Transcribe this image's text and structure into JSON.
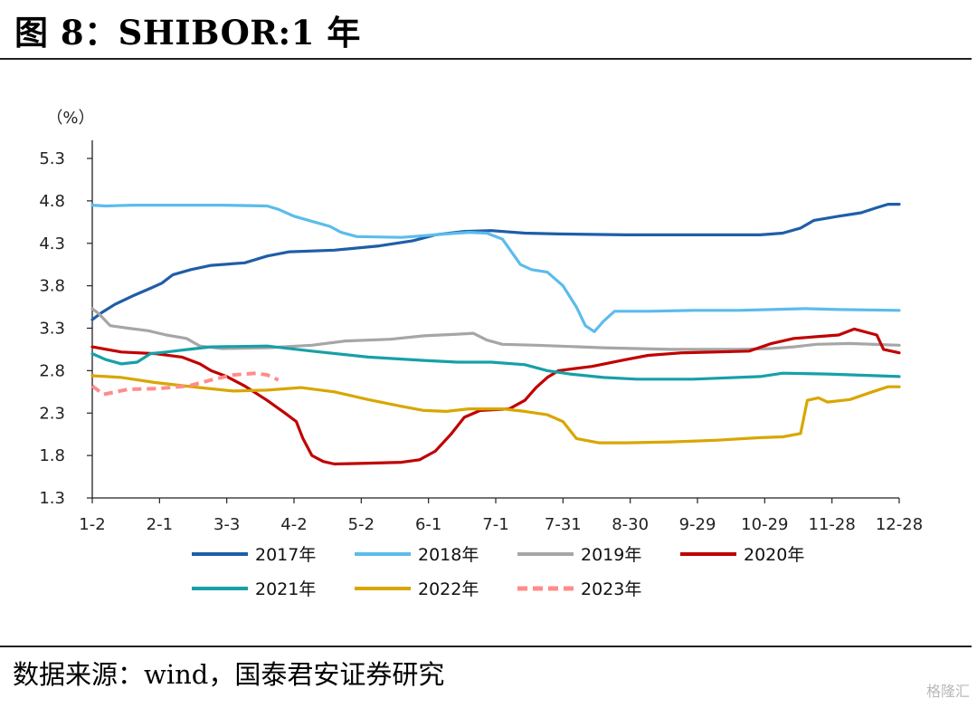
{
  "title": "图  8：SHIBOR:1 年",
  "source": "数据来源：wind，国泰君安证券研究",
  "watermark": "格隆汇",
  "chart_data": {
    "type": "line",
    "unit": "（%）",
    "ylim": [
      1.3,
      5.3
    ],
    "y_ticks": [
      "5.3",
      "4.8",
      "4.3",
      "3.8",
      "3.3",
      "2.8",
      "2.3",
      "1.8",
      "1.3"
    ],
    "x_ticks": [
      "1-2",
      "2-1",
      "3-3",
      "4-2",
      "5-2",
      "6-1",
      "7-1",
      "7-31",
      "8-30",
      "9-29",
      "10-29",
      "11-28",
      "12-28"
    ],
    "x_tick_days": [
      2,
      32,
      62,
      92,
      122,
      152,
      182,
      212,
      242,
      272,
      302,
      332,
      362
    ],
    "xlim": [
      2,
      362
    ],
    "legend": {
      "placement": "bottom",
      "columns": 4
    },
    "series": [
      {
        "name": "2017年",
        "color": "#1f5ea8",
        "dashed": false,
        "points": [
          [
            2,
            3.4
          ],
          [
            6,
            3.48
          ],
          [
            12,
            3.58
          ],
          [
            20,
            3.68
          ],
          [
            28,
            3.77
          ],
          [
            33,
            3.83
          ],
          [
            38,
            3.93
          ],
          [
            46,
            3.99
          ],
          [
            55,
            4.04
          ],
          [
            70,
            4.07
          ],
          [
            80,
            4.15
          ],
          [
            90,
            4.2
          ],
          [
            110,
            4.22
          ],
          [
            130,
            4.27
          ],
          [
            145,
            4.33
          ],
          [
            155,
            4.4
          ],
          [
            168,
            4.44
          ],
          [
            180,
            4.45
          ],
          [
            195,
            4.42
          ],
          [
            210,
            4.41
          ],
          [
            240,
            4.4
          ],
          [
            270,
            4.4
          ],
          [
            300,
            4.4
          ],
          [
            310,
            4.42
          ],
          [
            318,
            4.48
          ],
          [
            324,
            4.57
          ],
          [
            335,
            4.62
          ],
          [
            345,
            4.66
          ],
          [
            352,
            4.72
          ],
          [
            357,
            4.76
          ],
          [
            362,
            4.76
          ]
        ]
      },
      {
        "name": "2018年",
        "color": "#5bbcec",
        "dashed": false,
        "points": [
          [
            2,
            4.75
          ],
          [
            8,
            4.74
          ],
          [
            20,
            4.75
          ],
          [
            40,
            4.75
          ],
          [
            60,
            4.75
          ],
          [
            80,
            4.74
          ],
          [
            85,
            4.7
          ],
          [
            92,
            4.62
          ],
          [
            100,
            4.56
          ],
          [
            108,
            4.5
          ],
          [
            113,
            4.43
          ],
          [
            120,
            4.38
          ],
          [
            140,
            4.37
          ],
          [
            150,
            4.39
          ],
          [
            160,
            4.41
          ],
          [
            170,
            4.43
          ],
          [
            178,
            4.42
          ],
          [
            185,
            4.35
          ],
          [
            189,
            4.2
          ],
          [
            193,
            4.05
          ],
          [
            198,
            3.99
          ],
          [
            205,
            3.96
          ],
          [
            212,
            3.8
          ],
          [
            218,
            3.55
          ],
          [
            222,
            3.33
          ],
          [
            226,
            3.26
          ],
          [
            230,
            3.38
          ],
          [
            235,
            3.5
          ],
          [
            250,
            3.5
          ],
          [
            270,
            3.51
          ],
          [
            290,
            3.51
          ],
          [
            305,
            3.52
          ],
          [
            320,
            3.53
          ],
          [
            335,
            3.52
          ],
          [
            362,
            3.51
          ]
        ]
      },
      {
        "name": "2019年",
        "color": "#a6a6a6",
        "dashed": false,
        "points": [
          [
            2,
            3.53
          ],
          [
            5,
            3.47
          ],
          [
            10,
            3.33
          ],
          [
            18,
            3.3
          ],
          [
            27,
            3.27
          ],
          [
            35,
            3.22
          ],
          [
            44,
            3.18
          ],
          [
            50,
            3.09
          ],
          [
            60,
            3.06
          ],
          [
            80,
            3.07
          ],
          [
            100,
            3.1
          ],
          [
            115,
            3.15
          ],
          [
            135,
            3.17
          ],
          [
            150,
            3.21
          ],
          [
            165,
            3.23
          ],
          [
            172,
            3.24
          ],
          [
            178,
            3.16
          ],
          [
            185,
            3.11
          ],
          [
            200,
            3.1
          ],
          [
            230,
            3.07
          ],
          [
            260,
            3.05
          ],
          [
            290,
            3.05
          ],
          [
            305,
            3.06
          ],
          [
            315,
            3.08
          ],
          [
            325,
            3.11
          ],
          [
            340,
            3.12
          ],
          [
            362,
            3.1
          ]
        ]
      },
      {
        "name": "2020年",
        "color": "#c00000",
        "dashed": false,
        "points": [
          [
            2,
            3.08
          ],
          [
            15,
            3.02
          ],
          [
            30,
            3.0
          ],
          [
            42,
            2.96
          ],
          [
            50,
            2.88
          ],
          [
            55,
            2.8
          ],
          [
            62,
            2.73
          ],
          [
            70,
            2.62
          ],
          [
            80,
            2.45
          ],
          [
            88,
            2.3
          ],
          [
            93,
            2.2
          ],
          [
            96,
            2.0
          ],
          [
            100,
            1.8
          ],
          [
            105,
            1.73
          ],
          [
            110,
            1.7
          ],
          [
            125,
            1.71
          ],
          [
            140,
            1.72
          ],
          [
            148,
            1.75
          ],
          [
            155,
            1.85
          ],
          [
            162,
            2.05
          ],
          [
            168,
            2.25
          ],
          [
            175,
            2.33
          ],
          [
            188,
            2.35
          ],
          [
            195,
            2.45
          ],
          [
            200,
            2.6
          ],
          [
            205,
            2.72
          ],
          [
            210,
            2.8
          ],
          [
            225,
            2.85
          ],
          [
            240,
            2.93
          ],
          [
            250,
            2.98
          ],
          [
            265,
            3.01
          ],
          [
            280,
            3.02
          ],
          [
            295,
            3.03
          ],
          [
            305,
            3.12
          ],
          [
            315,
            3.18
          ],
          [
            325,
            3.2
          ],
          [
            335,
            3.22
          ],
          [
            342,
            3.29
          ],
          [
            352,
            3.22
          ],
          [
            355,
            3.05
          ],
          [
            362,
            3.01
          ]
        ]
      },
      {
        "name": "2021年",
        "color": "#17a0a8",
        "dashed": false,
        "points": [
          [
            2,
            3.0
          ],
          [
            8,
            2.93
          ],
          [
            15,
            2.88
          ],
          [
            22,
            2.9
          ],
          [
            28,
            3.0
          ],
          [
            35,
            3.02
          ],
          [
            45,
            3.05
          ],
          [
            55,
            3.08
          ],
          [
            80,
            3.09
          ],
          [
            100,
            3.03
          ],
          [
            125,
            2.96
          ],
          [
            150,
            2.92
          ],
          [
            165,
            2.9
          ],
          [
            180,
            2.9
          ],
          [
            195,
            2.87
          ],
          [
            205,
            2.8
          ],
          [
            215,
            2.76
          ],
          [
            230,
            2.72
          ],
          [
            245,
            2.7
          ],
          [
            270,
            2.7
          ],
          [
            300,
            2.73
          ],
          [
            310,
            2.77
          ],
          [
            330,
            2.76
          ],
          [
            362,
            2.73
          ]
        ]
      },
      {
        "name": "2022年",
        "color": "#d9a600",
        "dashed": false,
        "points": [
          [
            2,
            2.74
          ],
          [
            15,
            2.72
          ],
          [
            30,
            2.66
          ],
          [
            50,
            2.6
          ],
          [
            65,
            2.56
          ],
          [
            80,
            2.57
          ],
          [
            95,
            2.6
          ],
          [
            110,
            2.55
          ],
          [
            125,
            2.46
          ],
          [
            140,
            2.38
          ],
          [
            150,
            2.33
          ],
          [
            160,
            2.32
          ],
          [
            170,
            2.35
          ],
          [
            185,
            2.35
          ],
          [
            195,
            2.32
          ],
          [
            205,
            2.28
          ],
          [
            212,
            2.2
          ],
          [
            218,
            2.0
          ],
          [
            228,
            1.95
          ],
          [
            240,
            1.95
          ],
          [
            260,
            1.96
          ],
          [
            280,
            1.98
          ],
          [
            300,
            2.01
          ],
          [
            310,
            2.02
          ],
          [
            318,
            2.06
          ],
          [
            321,
            2.45
          ],
          [
            326,
            2.48
          ],
          [
            330,
            2.43
          ],
          [
            340,
            2.46
          ],
          [
            350,
            2.55
          ],
          [
            357,
            2.61
          ],
          [
            362,
            2.61
          ]
        ]
      },
      {
        "name": "2023年",
        "color": "#ff8c8c",
        "dashed": true,
        "points": [
          [
            2,
            2.62
          ],
          [
            7,
            2.52
          ],
          [
            18,
            2.58
          ],
          [
            32,
            2.59
          ],
          [
            45,
            2.62
          ],
          [
            55,
            2.69
          ],
          [
            65,
            2.75
          ],
          [
            75,
            2.77
          ],
          [
            80,
            2.75
          ],
          [
            85,
            2.69
          ]
        ]
      }
    ]
  }
}
